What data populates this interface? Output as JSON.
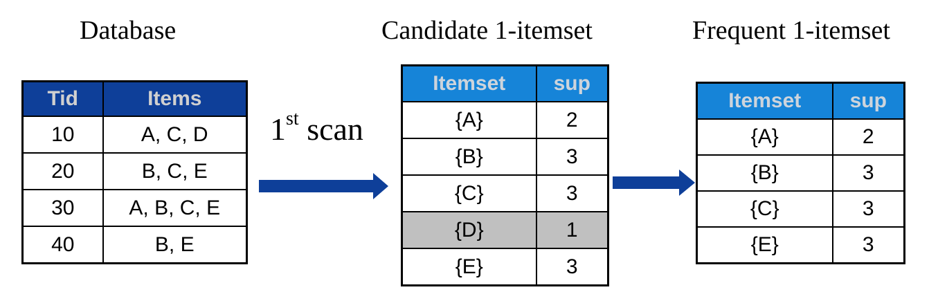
{
  "titles": {
    "database": "Database",
    "candidate": "Candidate 1-itemset",
    "frequent": "Frequent 1-itemset"
  },
  "scan": {
    "ordinal": "1",
    "suffix": "st",
    "word": "scan"
  },
  "database_table": {
    "headers": [
      "Tid",
      "Items"
    ],
    "rows": [
      [
        "10",
        "A, C, D"
      ],
      [
        "20",
        "B, C, E"
      ],
      [
        "30",
        "A, B, C, E"
      ],
      [
        "40",
        "B, E"
      ]
    ]
  },
  "candidate_table": {
    "headers": [
      "Itemset",
      "sup"
    ],
    "rows": [
      [
        "{A}",
        "2"
      ],
      [
        "{B}",
        "3"
      ],
      [
        "{C}",
        "3"
      ],
      [
        "{D}",
        "1"
      ],
      [
        "{E}",
        "3"
      ]
    ],
    "pruned_row": "{D}"
  },
  "frequent_table": {
    "headers": [
      "Itemset",
      "sup"
    ],
    "rows": [
      [
        "{A}",
        "2"
      ],
      [
        "{B}",
        "3"
      ],
      [
        "{C}",
        "3"
      ],
      [
        "{E}",
        "3"
      ]
    ]
  },
  "colors": {
    "db_header": "#0e3f99",
    "itemset_header": "#1684d8",
    "pruned_row": "#c0c0c0",
    "arrow": "#0e3f99"
  }
}
